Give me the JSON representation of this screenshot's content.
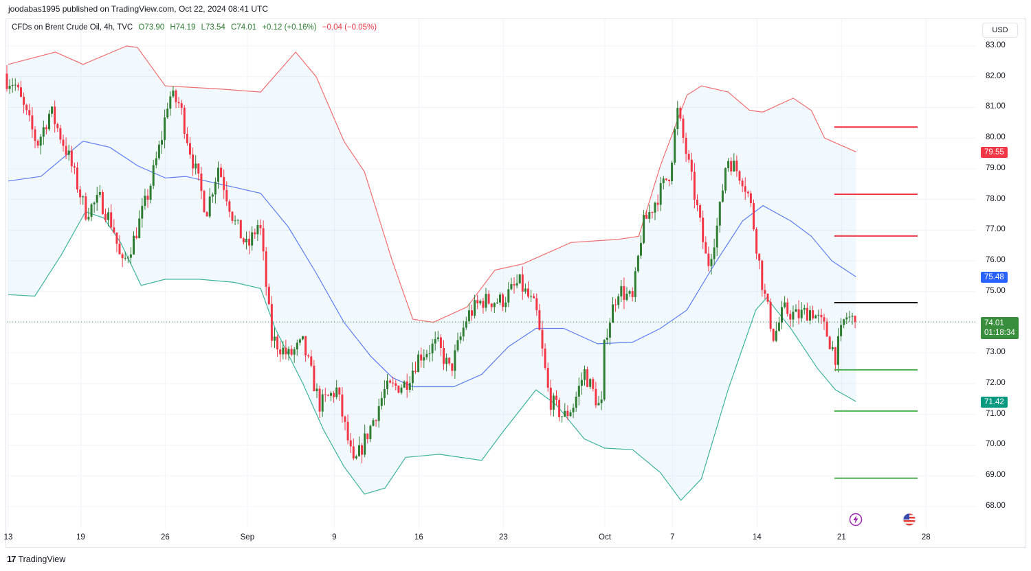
{
  "header": {
    "published": "joodabas1995 published on TradingView.com, Oct 22, 2024 08:41 UTC"
  },
  "legend": {
    "symbol": "CFDs on Brent Crude Oil, 4h, TVC",
    "open": "O73.90",
    "high": "H74.19",
    "low": "L73.54",
    "close": "C74.01",
    "change": "+0.12 (+0.16%)",
    "change2": "−0.04 (−0.05%)"
  },
  "currency": "USD",
  "price_labels": {
    "upper": {
      "value": "79.55",
      "color": "#f23645"
    },
    "middle": {
      "value": "75.48",
      "color": "#2962ff"
    },
    "last": {
      "value": "74.01",
      "countdown": "01:18:34",
      "color": "#388e3c"
    },
    "lower": {
      "value": "71.42",
      "color": "#089981"
    }
  },
  "branding": {
    "logo_text": "TradingView"
  },
  "icons": [
    "lightning-icon",
    "us-flag-icon"
  ],
  "chart_data": {
    "type": "candlestick",
    "title": "CFDs on Brent Crude Oil, 4h, TVC",
    "x_unit": "days since Aug 13, 2024",
    "xticks": [
      {
        "d": 0,
        "label": "13"
      },
      {
        "d": 6,
        "label": "19"
      },
      {
        "d": 13,
        "label": "26"
      },
      {
        "d": 19.8,
        "label": "Sep"
      },
      {
        "d": 27,
        "label": "9"
      },
      {
        "d": 34,
        "label": "16"
      },
      {
        "d": 41,
        "label": "23"
      },
      {
        "d": 49.4,
        "label": "Oct"
      },
      {
        "d": 55,
        "label": "7"
      },
      {
        "d": 62,
        "label": "14"
      },
      {
        "d": 69,
        "label": "21"
      },
      {
        "d": 76,
        "label": "28"
      }
    ],
    "yticks": [
      "68.00",
      "69.00",
      "70.00",
      "71.00",
      "72.00",
      "73.00",
      "74.00",
      "75.00",
      "76.00",
      "77.00",
      "78.00",
      "79.00",
      "80.00",
      "81.00",
      "82.00",
      "83.00"
    ],
    "ylim": [
      68,
      83
    ],
    "close_path": [
      [
        0,
        81.9
      ],
      [
        0.5,
        81.8
      ],
      [
        2.4,
        79.8
      ],
      [
        3.5,
        80.9
      ],
      [
        5,
        79.4
      ],
      [
        6.4,
        77.6
      ],
      [
        7.6,
        78.0
      ],
      [
        8.7,
        77.1
      ],
      [
        9.4,
        75.8
      ],
      [
        10.4,
        76.7
      ],
      [
        11.6,
        78.2
      ],
      [
        12.7,
        80.0
      ],
      [
        13.3,
        81.4
      ],
      [
        14.2,
        81.1
      ],
      [
        15,
        79.7
      ],
      [
        16.4,
        77.6
      ],
      [
        17.4,
        79.1
      ],
      [
        18.7,
        77.3
      ],
      [
        19.8,
        76.4
      ],
      [
        20.8,
        77.3
      ],
      [
        21.8,
        73.5
      ],
      [
        23.2,
        72.9
      ],
      [
        24.4,
        73.3
      ],
      [
        25.8,
        71.3
      ],
      [
        27.2,
        71.8
      ],
      [
        28.6,
        69.3
      ],
      [
        30,
        70.6
      ],
      [
        31.2,
        71.8
      ],
      [
        32.9,
        72.0
      ],
      [
        34,
        72.9
      ],
      [
        35.5,
        73.3
      ],
      [
        36.6,
        72.4
      ],
      [
        38,
        74.2
      ],
      [
        39.2,
        74.7
      ],
      [
        40.9,
        74.7
      ],
      [
        42.3,
        75.3
      ],
      [
        43.7,
        74.4
      ],
      [
        44.8,
        71.5
      ],
      [
        46,
        70.9
      ],
      [
        46.8,
        71.3
      ],
      [
        47.7,
        72.4
      ],
      [
        49.1,
        71.1
      ],
      [
        49.4,
        73.5
      ],
      [
        50.5,
        75.1
      ],
      [
        51.7,
        74.7
      ],
      [
        52.5,
        77.1
      ],
      [
        53.9,
        78.2
      ],
      [
        54.8,
        78.9
      ],
      [
        55.4,
        80.9
      ],
      [
        56.2,
        79.4
      ],
      [
        57.1,
        77.6
      ],
      [
        57.9,
        75.8
      ],
      [
        58.8,
        77.3
      ],
      [
        59.5,
        79.4
      ],
      [
        60.8,
        78.7
      ],
      [
        61.4,
        78.0
      ],
      [
        62.5,
        75.1
      ],
      [
        63.4,
        73.5
      ],
      [
        64.2,
        74.4
      ],
      [
        65.3,
        74.2
      ],
      [
        66.5,
        74.4
      ],
      [
        67.6,
        73.8
      ],
      [
        68.5,
        72.9
      ],
      [
        69.3,
        74.2
      ],
      [
        70.2,
        74.01
      ]
    ],
    "bollinger": {
      "upper": [
        [
          0,
          82.4
        ],
        [
          3.9,
          82.8
        ],
        [
          6.2,
          82.4
        ],
        [
          9.8,
          83.0
        ],
        [
          10.7,
          82.95
        ],
        [
          13,
          81.7
        ],
        [
          17.5,
          81.6
        ],
        [
          20.9,
          81.5
        ],
        [
          23.8,
          82.8
        ],
        [
          25.5,
          82.0
        ],
        [
          27.8,
          79.9
        ],
        [
          29.5,
          78.9
        ],
        [
          31.8,
          76.0
        ],
        [
          33.5,
          74.1
        ],
        [
          35.2,
          74.0
        ],
        [
          38,
          74.5
        ],
        [
          40.3,
          75.7
        ],
        [
          42.6,
          75.9
        ],
        [
          46.6,
          76.6
        ],
        [
          50.5,
          76.7
        ],
        [
          52.2,
          76.8
        ],
        [
          54,
          79.1
        ],
        [
          56.2,
          81.4
        ],
        [
          57.4,
          81.7
        ],
        [
          59.6,
          81.5
        ],
        [
          61.4,
          80.9
        ],
        [
          62.5,
          80.85
        ],
        [
          65,
          81.3
        ],
        [
          66.5,
          80.9
        ],
        [
          67.6,
          80.0
        ],
        [
          70.2,
          79.55
        ]
      ],
      "middle": [
        [
          0,
          78.6
        ],
        [
          2.7,
          78.75
        ],
        [
          6.2,
          79.9
        ],
        [
          8.4,
          79.7
        ],
        [
          10.7,
          79.1
        ],
        [
          13,
          78.7
        ],
        [
          14.7,
          78.75
        ],
        [
          16.4,
          78.6
        ],
        [
          18.7,
          78.4
        ],
        [
          20.9,
          78.2
        ],
        [
          23.2,
          77.1
        ],
        [
          25.5,
          75.6
        ],
        [
          27.8,
          74.0
        ],
        [
          30,
          72.9
        ],
        [
          31.8,
          72.2
        ],
        [
          33.5,
          71.9
        ],
        [
          36.9,
          71.9
        ],
        [
          39.2,
          72.3
        ],
        [
          41.4,
          73.2
        ],
        [
          43.7,
          73.8
        ],
        [
          46,
          73.8
        ],
        [
          48.8,
          73.3
        ],
        [
          51.7,
          73.35
        ],
        [
          54,
          73.8
        ],
        [
          56.2,
          74.4
        ],
        [
          58.5,
          75.9
        ],
        [
          60.8,
          77.3
        ],
        [
          62.5,
          77.8
        ],
        [
          64.8,
          77.3
        ],
        [
          66.5,
          76.8
        ],
        [
          68.2,
          76.0
        ],
        [
          70.2,
          75.48
        ]
      ],
      "lower": [
        [
          0,
          74.9
        ],
        [
          2.2,
          74.85
        ],
        [
          4.4,
          76.2
        ],
        [
          6.4,
          77.6
        ],
        [
          7.9,
          77.4
        ],
        [
          9.3,
          76.6
        ],
        [
          11,
          75.2
        ],
        [
          13,
          75.4
        ],
        [
          15.8,
          75.4
        ],
        [
          18.7,
          75.3
        ],
        [
          20.9,
          75.1
        ],
        [
          22.1,
          73.8
        ],
        [
          24.4,
          72.0
        ],
        [
          26.1,
          70.5
        ],
        [
          27.8,
          69.3
        ],
        [
          29.5,
          68.4
        ],
        [
          31.2,
          68.6
        ],
        [
          32.9,
          69.6
        ],
        [
          35.7,
          69.7
        ],
        [
          39.2,
          69.5
        ],
        [
          40.9,
          70.4
        ],
        [
          43.7,
          71.8
        ],
        [
          45.4,
          71.3
        ],
        [
          47.7,
          70.2
        ],
        [
          49.4,
          69.9
        ],
        [
          51.7,
          69.85
        ],
        [
          54,
          69.1
        ],
        [
          55.7,
          68.2
        ],
        [
          57.4,
          68.9
        ],
        [
          59.6,
          71.8
        ],
        [
          61.9,
          74.4
        ],
        [
          62.8,
          74.8
        ],
        [
          64.8,
          73.8
        ],
        [
          67,
          72.5
        ],
        [
          68.5,
          71.8
        ],
        [
          70.2,
          71.42
        ]
      ]
    },
    "levels": [
      {
        "price": 80.36,
        "color": "#f23645"
      },
      {
        "price": 78.17,
        "color": "#f23645"
      },
      {
        "price": 76.81,
        "color": "#f23645"
      },
      {
        "price": 74.64,
        "color": "#000000"
      },
      {
        "price": 72.45,
        "color": "#4caf50"
      },
      {
        "price": 71.11,
        "color": "#4caf50"
      },
      {
        "price": 68.92,
        "color": "#4caf50"
      }
    ],
    "levels_range_days": [
      68.4,
      75.3
    ],
    "last_price": 74.01
  }
}
